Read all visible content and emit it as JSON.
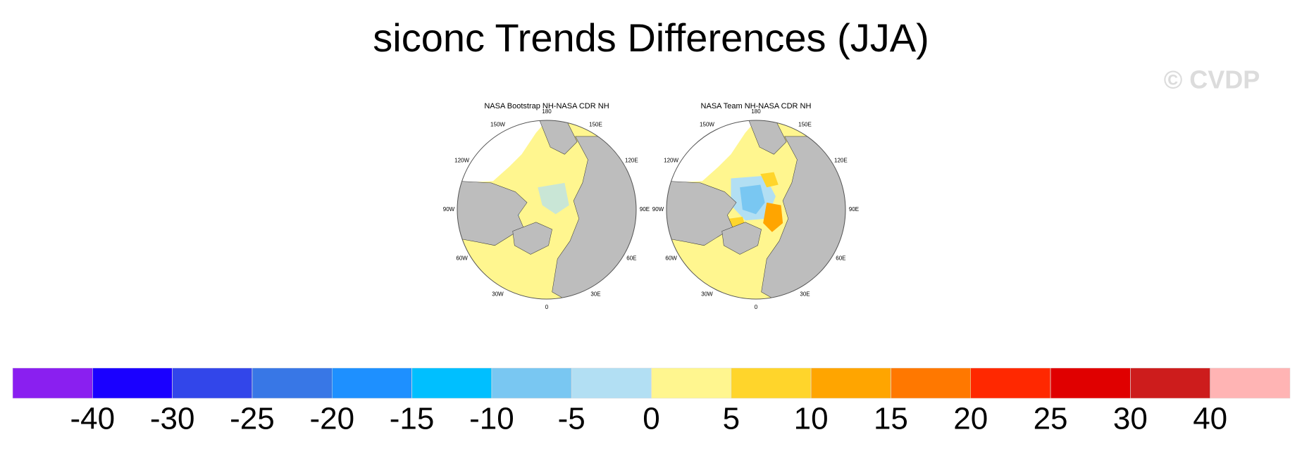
{
  "title": "siconc Trends Differences (JJA)",
  "watermark": "© CVDP",
  "panels": [
    {
      "title": "NASA Bootstrap NH-NASA CDR NH",
      "lon_labels": [
        "180",
        "150E",
        "120E",
        "90E",
        "60E",
        "30E",
        "0",
        "30W",
        "60W",
        "90W",
        "120W",
        "150W"
      ]
    },
    {
      "title": "NASA Team NH-NASA CDR NH",
      "lon_labels": [
        "180",
        "150E",
        "120E",
        "90E",
        "60E",
        "30E",
        "0",
        "30W",
        "60W",
        "90W",
        "120W",
        "150W"
      ]
    }
  ],
  "colorbar": {
    "levels": [
      -40,
      -30,
      -25,
      -20,
      -15,
      -10,
      -5,
      0,
      5,
      10,
      15,
      20,
      25,
      30,
      40
    ],
    "colors": [
      "#8a1ff0",
      "#1a00ff",
      "#3246ea",
      "#3877e6",
      "#1e90ff",
      "#00bfff",
      "#79c7f2",
      "#b2dff3",
      "#fff68f",
      "#ffd52b",
      "#ffa500",
      "#ff7800",
      "#ff2800",
      "#e00000",
      "#cd1c1c",
      "#ffb4b4"
    ]
  }
}
